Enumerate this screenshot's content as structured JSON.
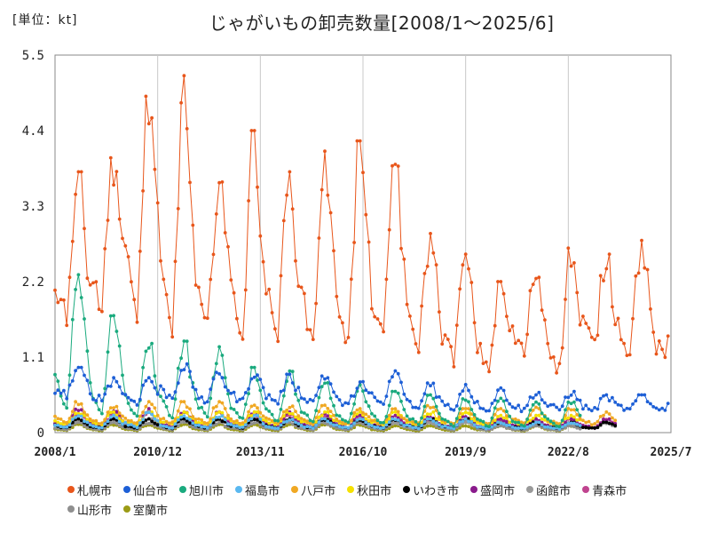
{
  "unit_label": "[単位：kt]",
  "chart_data": {
    "type": "line",
    "title": "じゃがいもの卸売数量[2008/1～2025/6]",
    "ylim": [
      0,
      5.5
    ],
    "yticks": [
      "0",
      "1.1",
      "2.2",
      "3.3",
      "4.4",
      "5.5"
    ],
    "xrange": [
      "2008/1",
      "2025/7"
    ],
    "xticks": [
      "2008/1",
      "2010/12",
      "2013/11",
      "2016/10",
      "2019/9",
      "2022/8",
      "2025/7"
    ],
    "grid": "vertical",
    "legend_position": "bottom",
    "series": [
      {
        "name": "札幌市",
        "color": "#e8561b",
        "start": "2008/1",
        "end": "2025/6",
        "yearly_peaks": [
          3.8,
          4.1,
          4.9,
          5.2,
          3.9,
          4.4,
          3.8,
          4.1,
          4.25,
          4.1,
          2.9,
          2.6,
          2.2,
          2.4,
          2.7,
          2.6,
          2.8,
          2.3
        ],
        "yearly_troughs": [
          1.5,
          1.6,
          1.4,
          1.0,
          1.2,
          1.1,
          1.2,
          1.0,
          1.0,
          1.0,
          1.1,
          0.9,
          0.8,
          1.0,
          0.7,
          1.1,
          1.0,
          0.9
        ]
      },
      {
        "name": "仙台市",
        "color": "#1d5fd6",
        "start": "2008/1",
        "end": "2025/6",
        "yearly_peaks": [
          0.95,
          0.8,
          0.8,
          1.0,
          0.9,
          0.9,
          0.85,
          0.85,
          0.75,
          0.9,
          0.75,
          0.7,
          0.65,
          0.6,
          0.6,
          0.55,
          0.55,
          0.6
        ],
        "yearly_troughs": [
          0.5,
          0.45,
          0.4,
          0.45,
          0.4,
          0.4,
          0.4,
          0.4,
          0.35,
          0.35,
          0.3,
          0.3,
          0.3,
          0.3,
          0.3,
          0.3,
          0.3,
          0.3
        ]
      },
      {
        "name": "旭川市",
        "color": "#1aaa7e",
        "start": "2008/1",
        "end": "2022/12",
        "yearly_peaks": [
          2.3,
          1.8,
          1.3,
          1.35,
          1.25,
          0.95,
          0.9,
          0.8,
          0.7,
          0.6,
          0.55,
          0.5,
          0.5,
          0.45,
          0.45
        ],
        "yearly_troughs": [
          0.1,
          0.1,
          0.1,
          0.1,
          0.1,
          0.1,
          0.08,
          0.08,
          0.08,
          0.08,
          0.08,
          0.05,
          0.05,
          0.05,
          0.05
        ]
      },
      {
        "name": "福島市",
        "color": "#5ab8f0",
        "start": "2008/1",
        "end": "2022/12",
        "yearly_peaks": [
          0.25,
          0.25,
          0.3,
          0.25,
          0.25,
          0.25,
          0.2,
          0.2,
          0.2,
          0.2,
          0.2,
          0.2,
          0.15,
          0.15,
          0.15
        ],
        "yearly_troughs": [
          0.05,
          0.05,
          0.05,
          0.05,
          0.05,
          0.05,
          0.05,
          0.05,
          0.05,
          0.05,
          0.05,
          0.05,
          0.05,
          0.05,
          0.05
        ]
      },
      {
        "name": "八戸市",
        "color": "#f0a823",
        "start": "2008/1",
        "end": "2023/12",
        "yearly_peaks": [
          0.45,
          0.4,
          0.45,
          0.45,
          0.45,
          0.4,
          0.4,
          0.4,
          0.35,
          0.35,
          0.4,
          0.35,
          0.35,
          0.4,
          0.35,
          0.3
        ],
        "yearly_troughs": [
          0.1,
          0.1,
          0.1,
          0.1,
          0.1,
          0.1,
          0.1,
          0.1,
          0.1,
          0.1,
          0.1,
          0.1,
          0.1,
          0.1,
          0.1,
          0.1
        ]
      },
      {
        "name": "秋田市",
        "color": "#f5e100",
        "start": "2008/1",
        "end": "2022/12",
        "yearly_peaks": [
          0.3,
          0.3,
          0.3,
          0.3,
          0.3,
          0.3,
          0.3,
          0.3,
          0.3,
          0.3,
          0.3,
          0.3,
          0.25,
          0.25,
          0.25
        ],
        "yearly_troughs": [
          0.1,
          0.1,
          0.1,
          0.1,
          0.1,
          0.1,
          0.1,
          0.1,
          0.1,
          0.1,
          0.1,
          0.1,
          0.1,
          0.1,
          0.1
        ]
      },
      {
        "name": "いわき市",
        "color": "#000000",
        "start": "2008/1",
        "end": "2023/12",
        "yearly_peaks": [
          0.2,
          0.2,
          0.2,
          0.2,
          0.2,
          0.2,
          0.2,
          0.2,
          0.2,
          0.2,
          0.2,
          0.2,
          0.15,
          0.15,
          0.15,
          0.15
        ],
        "yearly_troughs": [
          0.05,
          0.05,
          0.05,
          0.05,
          0.05,
          0.05,
          0.05,
          0.05,
          0.05,
          0.05,
          0.05,
          0.05,
          0.05,
          0.05,
          0.05,
          0.05
        ]
      },
      {
        "name": "盛岡市",
        "color": "#8a1b8c",
        "start": "2008/1",
        "end": "2023/12",
        "yearly_peaks": [
          0.35,
          0.35,
          0.35,
          0.3,
          0.3,
          0.3,
          0.3,
          0.3,
          0.25,
          0.25,
          0.25,
          0.25,
          0.2,
          0.2,
          0.2,
          0.2
        ],
        "yearly_troughs": [
          0.05,
          0.05,
          0.05,
          0.05,
          0.05,
          0.05,
          0.05,
          0.05,
          0.05,
          0.05,
          0.05,
          0.05,
          0.05,
          0.05,
          0.05,
          0.05
        ]
      },
      {
        "name": "函館市",
        "color": "#999999",
        "start": "2008/1",
        "end": "2023/12",
        "yearly_peaks": [
          0.2,
          0.2,
          0.2,
          0.2,
          0.2,
          0.2,
          0.2,
          0.2,
          0.2,
          0.15,
          0.15,
          0.15,
          0.15,
          0.15,
          0.15,
          0.15
        ],
        "yearly_troughs": [
          0.05,
          0.05,
          0.05,
          0.05,
          0.05,
          0.05,
          0.05,
          0.05,
          0.05,
          0.05,
          0.05,
          0.05,
          0.05,
          0.05,
          0.05,
          0.05
        ]
      },
      {
        "name": "青森市",
        "color": "#c0448f",
        "start": "2008/1",
        "end": "2023/12",
        "yearly_peaks": [
          0.3,
          0.3,
          0.3,
          0.3,
          0.3,
          0.25,
          0.25,
          0.25,
          0.25,
          0.25,
          0.2,
          0.2,
          0.2,
          0.2,
          0.2,
          0.2
        ],
        "yearly_troughs": [
          0.05,
          0.05,
          0.05,
          0.05,
          0.05,
          0.05,
          0.05,
          0.05,
          0.05,
          0.05,
          0.05,
          0.05,
          0.05,
          0.05,
          0.05,
          0.05
        ]
      },
      {
        "name": "山形市",
        "color": "#8f8f8f",
        "start": "2008/1",
        "end": "2022/12",
        "yearly_peaks": [
          0.15,
          0.15,
          0.15,
          0.15,
          0.15,
          0.15,
          0.15,
          0.15,
          0.15,
          0.15,
          0.15,
          0.15,
          0.1,
          0.1,
          0.1
        ],
        "yearly_troughs": [
          0.03,
          0.03,
          0.03,
          0.03,
          0.03,
          0.03,
          0.03,
          0.03,
          0.03,
          0.03,
          0.03,
          0.03,
          0.03,
          0.03,
          0.03
        ]
      },
      {
        "name": "室蘭市",
        "color": "#9b9b16",
        "start": "2008/1",
        "end": "2022/12",
        "yearly_peaks": [
          0.12,
          0.12,
          0.12,
          0.12,
          0.12,
          0.12,
          0.12,
          0.12,
          0.12,
          0.1,
          0.1,
          0.1,
          0.1,
          0.1,
          0.1
        ],
        "yearly_troughs": [
          0.02,
          0.02,
          0.02,
          0.02,
          0.02,
          0.02,
          0.02,
          0.02,
          0.02,
          0.02,
          0.02,
          0.02,
          0.02,
          0.02,
          0.02
        ]
      }
    ]
  }
}
